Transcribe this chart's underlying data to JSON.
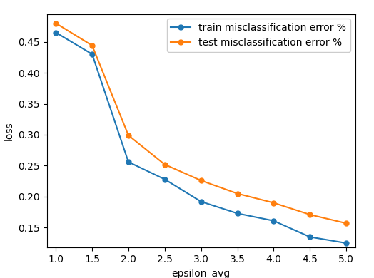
{
  "x": [
    1.0,
    1.5,
    2.0,
    2.5,
    3.0,
    3.5,
    4.0,
    4.5,
    5.0
  ],
  "train_y": [
    0.465,
    0.43,
    0.256,
    0.228,
    0.192,
    0.173,
    0.161,
    0.135,
    0.125
  ],
  "test_y": [
    0.48,
    0.444,
    0.299,
    0.252,
    0.226,
    0.205,
    0.19,
    0.171,
    0.157
  ],
  "train_label": "train misclassification error %",
  "test_label": "test misclassification error %",
  "train_color": "#1f77b4",
  "test_color": "#ff7f0e",
  "xlabel": "epsilon_avg",
  "ylabel": "loss",
  "xlim": [
    0.875,
    5.125
  ],
  "ylim": [
    0.118,
    0.495
  ],
  "xticks": [
    1.0,
    1.5,
    2.0,
    2.5,
    3.0,
    3.5,
    4.0,
    4.5,
    5.0
  ],
  "yticks": [
    0.15,
    0.2,
    0.25,
    0.3,
    0.35,
    0.4,
    0.45
  ],
  "marker": "o",
  "linewidth": 1.5,
  "markersize": 5,
  "figsize": [
    5.24,
    3.9
  ],
  "dpi": 100,
  "legend_fontsize": 10
}
